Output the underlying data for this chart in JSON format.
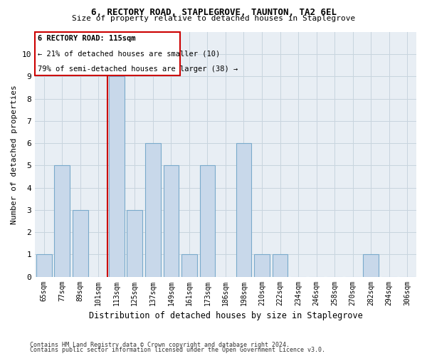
{
  "title1": "6, RECTORY ROAD, STAPLEGROVE, TAUNTON, TA2 6EL",
  "title2": "Size of property relative to detached houses in Staplegrove",
  "xlabel": "Distribution of detached houses by size in Staplegrove",
  "ylabel": "Number of detached properties",
  "categories": [
    "65sqm",
    "77sqm",
    "89sqm",
    "101sqm",
    "113sqm",
    "125sqm",
    "137sqm",
    "149sqm",
    "161sqm",
    "173sqm",
    "186sqm",
    "198sqm",
    "210sqm",
    "222sqm",
    "234sqm",
    "246sqm",
    "258sqm",
    "270sqm",
    "282sqm",
    "294sqm",
    "306sqm"
  ],
  "values": [
    1,
    5,
    3,
    0,
    9,
    3,
    6,
    5,
    1,
    5,
    0,
    6,
    1,
    1,
    0,
    0,
    0,
    0,
    1,
    0,
    0
  ],
  "bar_color": "#c8d8ea",
  "bar_edge_color": "#7aaacb",
  "highlight_index": 4,
  "highlight_line_color": "#cc0000",
  "annotation_title": "6 RECTORY ROAD: 115sqm",
  "annotation_line1": "← 21% of detached houses are smaller (10)",
  "annotation_line2": "79% of semi-detached houses are larger (38) →",
  "annotation_box_color": "#cc0000",
  "ylim": [
    0,
    11
  ],
  "yticks": [
    0,
    1,
    2,
    3,
    4,
    5,
    6,
    7,
    8,
    9,
    10
  ],
  "footer1": "Contains HM Land Registry data © Crown copyright and database right 2024.",
  "footer2": "Contains public sector information licensed under the Open Government Licence v3.0.",
  "grid_color": "#c8d4de",
  "bg_color": "#e8eef4"
}
